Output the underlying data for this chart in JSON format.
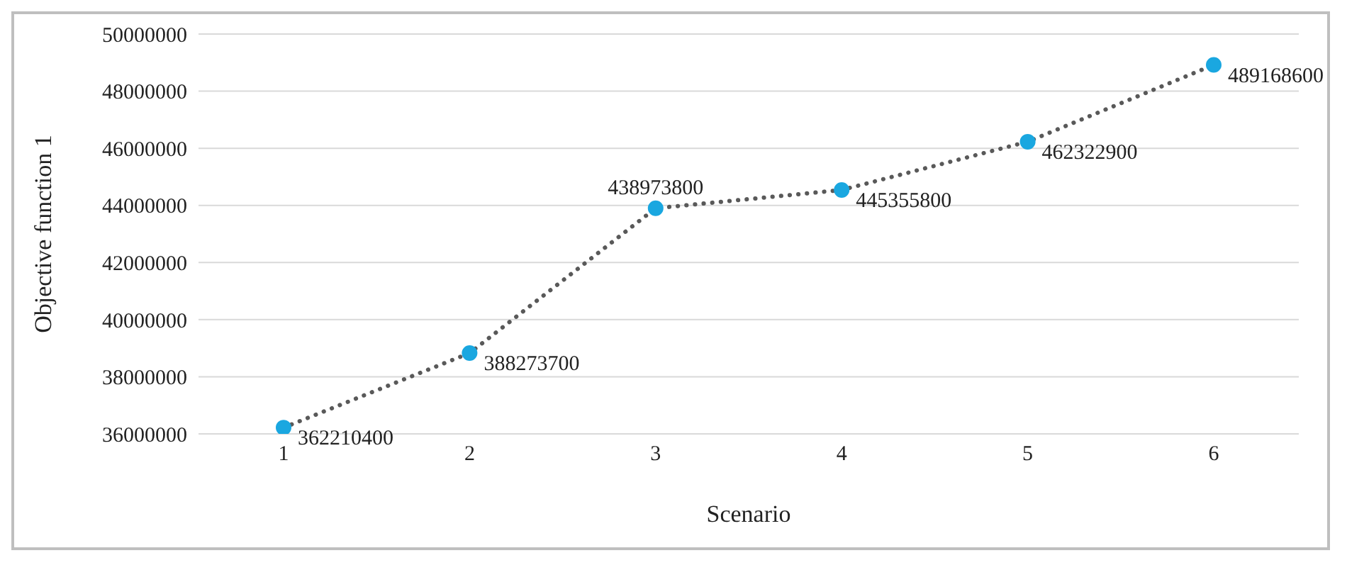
{
  "chart_data": {
    "type": "line",
    "xlabel": "Scenario",
    "ylabel": "Objective function 1",
    "categories": [
      "1",
      "2",
      "3",
      "4",
      "5",
      "6"
    ],
    "series": [
      {
        "color": "#1aa7e0",
        "values": [
          36220000,
          38830000,
          43900000,
          44540000,
          46230000,
          48920000
        ]
      }
    ],
    "annotations": [
      {
        "text": "362210400",
        "x": "1",
        "y": 36220000
      },
      {
        "text": "388273700",
        "x": "2",
        "y": 38830000
      },
      {
        "text": "438973800",
        "x": "3",
        "y": 43900000
      },
      {
        "text": "445355800",
        "x": "4",
        "y": 44540000
      },
      {
        "text": "462322900",
        "x": "5",
        "y": 46230000
      },
      {
        "text": "489168600",
        "x": "6",
        "y": 48920000
      }
    ],
    "ylim": [
      36000000,
      50000000
    ],
    "yticks": [
      36000000,
      38000000,
      40000000,
      42000000,
      44000000,
      46000000,
      48000000,
      50000000
    ],
    "grid": "y",
    "marker": "circle",
    "line_style": "dotted"
  }
}
